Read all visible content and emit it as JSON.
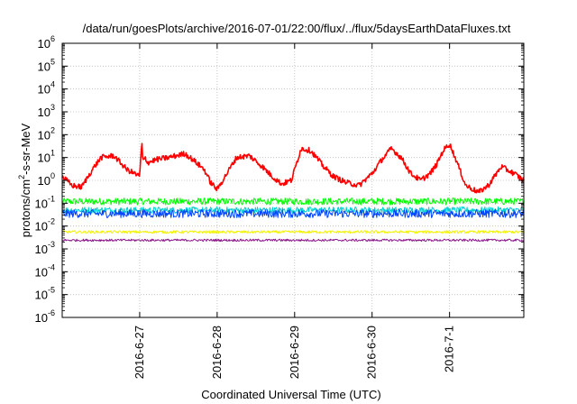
{
  "chart_data": {
    "type": "line",
    "title": "/data/run/goesPlots/archive/2016-07-01/22:00/flux/../flux/5daysEarthDataFluxes.txt",
    "xlabel": "Coordinated Universal Time (UTC)",
    "ylabel": {
      "prefix": "protons/cm",
      "sup": "2",
      "suffix": "-s-sr-MeV"
    },
    "yscale": "log",
    "ylim": [
      1e-06,
      1000000.0
    ],
    "y_ticks": [
      {
        "exp": "-6",
        "value": 1e-06
      },
      {
        "exp": "-5",
        "value": 1e-05
      },
      {
        "exp": "-4",
        "value": 0.0001
      },
      {
        "exp": "-3",
        "value": 0.001
      },
      {
        "exp": "-2",
        "value": 0.01
      },
      {
        "exp": "-1",
        "value": 0.1
      },
      {
        "exp": "0",
        "value": 1
      },
      {
        "exp": "1",
        "value": 10
      },
      {
        "exp": "2",
        "value": 100
      },
      {
        "exp": "3",
        "value": 1000
      },
      {
        "exp": "4",
        "value": 10000
      },
      {
        "exp": "5",
        "value": 100000
      },
      {
        "exp": "6",
        "value": 1000000
      }
    ],
    "xlim": [
      "2016-06-26T00:00",
      "2016-07-01T23:00"
    ],
    "x_ticks": [
      {
        "label": "2016-6-27",
        "value": "2016-06-27T00:00"
      },
      {
        "label": "2016-6-28",
        "value": "2016-06-28T00:00"
      },
      {
        "label": "2016-6-29",
        "value": "2016-06-29T00:00"
      },
      {
        "label": "2016-6-30",
        "value": "2016-06-30T00:00"
      },
      {
        "label": "2016-7-1",
        "value": "2016-07-01T00:00"
      }
    ],
    "grid": true,
    "series": [
      {
        "color": "#ff0000",
        "noise_dex": 0.12,
        "x": [
          "2016-06-26T00:00",
          "2016-06-26T03:00",
          "2016-06-26T06:00",
          "2016-06-26T09:00",
          "2016-06-26T12:00",
          "2016-06-26T16:00",
          "2016-06-26T20:00",
          "2016-06-27T00:00",
          "2016-06-27T00:40",
          "2016-06-27T01:00",
          "2016-06-27T01:40",
          "2016-06-27T02:30",
          "2016-06-27T05:00",
          "2016-06-27T09:00",
          "2016-06-27T14:00",
          "2016-06-27T17:00",
          "2016-06-27T20:00",
          "2016-06-27T22:00",
          "2016-06-28T00:00",
          "2016-06-28T03:00",
          "2016-06-28T06:00",
          "2016-06-28T10:00",
          "2016-06-28T14:00",
          "2016-06-28T17:00",
          "2016-06-28T20:00",
          "2016-06-28T23:00",
          "2016-06-29T02:00",
          "2016-06-29T05:00",
          "2016-06-29T09:00",
          "2016-06-29T12:00",
          "2016-06-29T16:00",
          "2016-06-29T20:00",
          "2016-06-30T00:00",
          "2016-06-30T03:00",
          "2016-06-30T06:00",
          "2016-06-30T09:00",
          "2016-06-30T12:00",
          "2016-06-30T15:00",
          "2016-06-30T18:00",
          "2016-06-30T20:00",
          "2016-06-30T22:00",
          "2016-07-01T00:00",
          "2016-07-01T02:00",
          "2016-07-01T05:00",
          "2016-07-01T09:00",
          "2016-07-01T12:00",
          "2016-07-01T16:00",
          "2016-07-01T20:00",
          "2016-07-01T23:00"
        ],
        "y": [
          1.5,
          0.6,
          0.5,
          2.5,
          10,
          12,
          3,
          1.5,
          50,
          6,
          10,
          6,
          8,
          10,
          15,
          7,
          3,
          0.8,
          0.4,
          2,
          10,
          12,
          4,
          1.5,
          0.7,
          1,
          25,
          20,
          4,
          1.5,
          0.8,
          0.6,
          2,
          8,
          25,
          10,
          2,
          1,
          2,
          5,
          20,
          40,
          8,
          0.6,
          0.3,
          0.6,
          4,
          2,
          1
        ]
      },
      {
        "color": "#00ff00",
        "noise_dex": 0.15,
        "x": [
          "2016-06-26T00:00",
          "2016-07-01T23:00"
        ],
        "y": [
          0.12,
          0.12
        ]
      },
      {
        "color": "#00ced1",
        "noise_dex": 0.14,
        "x": [
          "2016-06-26T00:00",
          "2016-07-01T23:00"
        ],
        "y": [
          0.05,
          0.05
        ]
      },
      {
        "color": "#0044ff",
        "noise_dex": 0.18,
        "x": [
          "2016-06-26T00:00",
          "2016-07-01T23:00"
        ],
        "y": [
          0.035,
          0.035
        ]
      },
      {
        "color": "#f2f200",
        "noise_dex": 0.06,
        "x": [
          "2016-06-26T00:00",
          "2016-07-01T23:00"
        ],
        "y": [
          0.0055,
          0.0055
        ]
      },
      {
        "color": "#8b1a8b",
        "noise_dex": 0.05,
        "x": [
          "2016-06-26T00:00",
          "2016-07-01T23:00"
        ],
        "y": [
          0.0024,
          0.0024
        ]
      }
    ]
  }
}
